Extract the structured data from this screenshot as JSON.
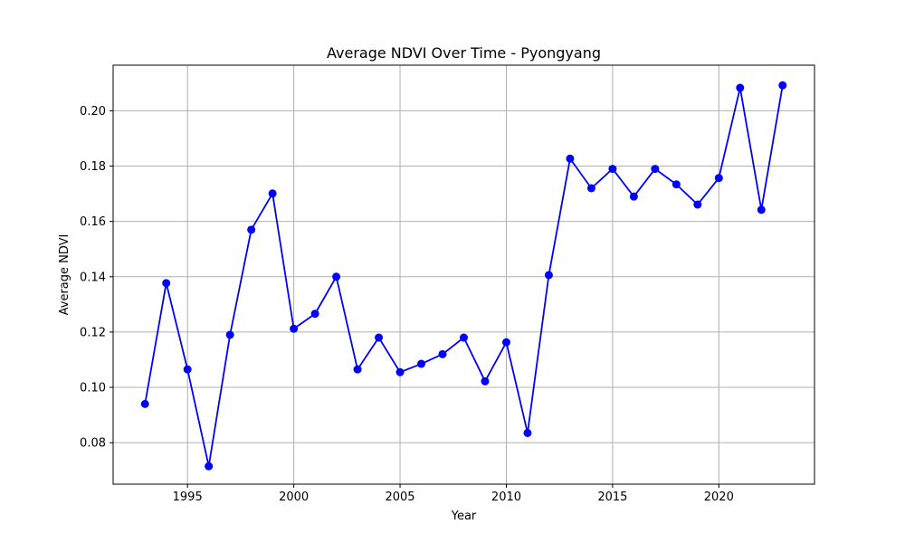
{
  "chart_data": {
    "type": "line",
    "title": "Average NDVI Over Time - Pyongyang",
    "xlabel": "Year",
    "ylabel": "Average NDVI",
    "xlim": [
      1991.5,
      2024.5
    ],
    "ylim": [
      0.065,
      0.2165
    ],
    "grid": true,
    "x_ticks": [
      1995,
      2000,
      2005,
      2010,
      2015,
      2020
    ],
    "y_ticks": [
      0.08,
      0.1,
      0.12,
      0.14,
      0.16,
      0.18,
      0.2
    ],
    "x_tick_labels": [
      "1995",
      "2000",
      "2005",
      "2010",
      "2015",
      "2020"
    ],
    "y_tick_labels": [
      "0.08",
      "0.10",
      "0.12",
      "0.14",
      "0.16",
      "0.18",
      "0.20"
    ],
    "line_color": "#0000ff",
    "marker": "circle",
    "series": [
      {
        "x": [
          1993,
          1994,
          1995,
          1996,
          1997,
          1998,
          1999,
          2000,
          2001,
          2002,
          2003,
          2004,
          2005,
          2006,
          2007,
          2008,
          2009,
          2010,
          2011,
          2012,
          2013,
          2014,
          2015,
          2016,
          2017,
          2018,
          2019,
          2020,
          2021,
          2022,
          2023
        ],
        "values": [
          0.094,
          0.1377,
          0.1065,
          0.0715,
          0.119,
          0.157,
          0.1701,
          0.1212,
          0.1266,
          0.14,
          0.1065,
          0.118,
          0.1055,
          0.1085,
          0.112,
          0.118,
          0.1022,
          0.1163,
          0.0835,
          0.1406,
          0.1827,
          0.172,
          0.179,
          0.169,
          0.179,
          0.1734,
          0.1661,
          0.1757,
          0.2083,
          0.1642,
          0.2092
        ]
      }
    ]
  }
}
